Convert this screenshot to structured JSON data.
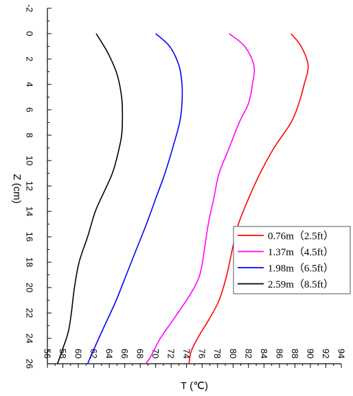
{
  "chart_data": {
    "type": "line",
    "title": "",
    "xlabel": "T (℃)",
    "ylabel": "Z (cm)",
    "xlim": [
      56,
      94
    ],
    "ylim": [
      -2,
      26
    ],
    "y_inverted": true,
    "x_ticks": [
      "56",
      "58",
      "60",
      "62",
      "64",
      "66",
      "68",
      "70",
      "72",
      "74",
      "76",
      "78",
      "80",
      "82",
      "84",
      "86",
      "88",
      "90",
      "92",
      "94"
    ],
    "y_ticks": [
      "-2",
      "0",
      "2",
      "4",
      "6",
      "8",
      "10",
      "12",
      "14",
      "16",
      "18",
      "20",
      "22",
      "24",
      "26"
    ],
    "grid": false,
    "legend_position": "lower-right",
    "series": [
      {
        "name": "0.76m（2.5ft）",
        "color": "#ff0000",
        "points": [
          [
            87.5,
            0
          ],
          [
            88.8,
            1
          ],
          [
            89.7,
            2.5
          ],
          [
            89.2,
            4
          ],
          [
            88.5,
            5.5
          ],
          [
            87.5,
            7
          ],
          [
            85.3,
            9
          ],
          [
            83.5,
            11
          ],
          [
            82.0,
            13
          ],
          [
            80.7,
            15
          ],
          [
            79.9,
            17
          ],
          [
            79.2,
            19
          ],
          [
            78.2,
            21
          ],
          [
            76.9,
            22.5
          ],
          [
            75.6,
            23.8
          ],
          [
            74.6,
            25
          ],
          [
            74.3,
            26
          ]
        ]
      },
      {
        "name": "1.37m（4.5ft）",
        "color": "#ff00ff",
        "points": [
          [
            79.5,
            0
          ],
          [
            81.5,
            1
          ],
          [
            82.7,
            2.5
          ],
          [
            82.5,
            4
          ],
          [
            82.0,
            5.5
          ],
          [
            80.8,
            7
          ],
          [
            79.5,
            9
          ],
          [
            78.2,
            11
          ],
          [
            77.5,
            13
          ],
          [
            76.8,
            15
          ],
          [
            76.3,
            17
          ],
          [
            75.7,
            19
          ],
          [
            74.5,
            20.5
          ],
          [
            72.3,
            22.5
          ],
          [
            70.6,
            24
          ],
          [
            69.3,
            25.5
          ],
          [
            68.7,
            26
          ]
        ]
      },
      {
        "name": "1.98m（6.5ft）",
        "color": "#0000ff",
        "points": [
          [
            70.0,
            0
          ],
          [
            71.8,
            1
          ],
          [
            73.0,
            2.5
          ],
          [
            73.4,
            4
          ],
          [
            73.4,
            5.5
          ],
          [
            73.1,
            7
          ],
          [
            72.2,
            9
          ],
          [
            71.2,
            11
          ],
          [
            70.0,
            13
          ],
          [
            68.8,
            15
          ],
          [
            67.5,
            17
          ],
          [
            66.2,
            19
          ],
          [
            64.9,
            21
          ],
          [
            63.4,
            23
          ],
          [
            61.9,
            25
          ],
          [
            61.2,
            26
          ]
        ]
      },
      {
        "name": "2.59m（8.5ft）",
        "color": "#000000",
        "points": [
          [
            62.3,
            0
          ],
          [
            63.8,
            1.5
          ],
          [
            65.0,
            3.2
          ],
          [
            65.6,
            5
          ],
          [
            65.7,
            6.5
          ],
          [
            65.6,
            8
          ],
          [
            65.1,
            9.5
          ],
          [
            64.4,
            11
          ],
          [
            63.3,
            12.5
          ],
          [
            62.2,
            14
          ],
          [
            61.2,
            16
          ],
          [
            60.1,
            18
          ],
          [
            59.5,
            20
          ],
          [
            59.1,
            22
          ],
          [
            58.7,
            23.5
          ],
          [
            58.0,
            24.8
          ],
          [
            57.3,
            26
          ]
        ]
      }
    ]
  }
}
